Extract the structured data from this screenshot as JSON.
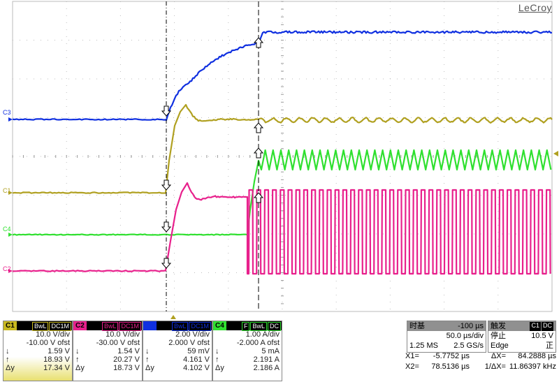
{
  "brand": "LeCroy",
  "colors": {
    "c1": "#b0a020",
    "c2": "#e8208c",
    "c3": "#1030e0",
    "c4": "#30e030",
    "grid": "#bfbfbf"
  },
  "trace_labels": {
    "c3": "C3",
    "c1": "C1",
    "c4": "C4",
    "c2": "C2"
  },
  "channels": [
    {
      "tag": "C1",
      "badges": [
        "BwL",
        "DC1M"
      ],
      "vdiv": "10.0 V/div",
      "ofst": "-10.00 V ofst",
      "down": "1.59 V",
      "up": "18.93 V",
      "dy": "17.34 V"
    },
    {
      "tag": "C2",
      "badges": [
        "BwL",
        "DC1M"
      ],
      "vdiv": "10.0 V/div",
      "ofst": "-30.00 V ofst",
      "down": "1.54 V",
      "up": "20.27 V",
      "dy": "18.73 V"
    },
    {
      "tag": "C3",
      "badges": [
        "BwL",
        "DC1M"
      ],
      "vdiv": "2.00 V/div",
      "ofst": "2.000 V ofst",
      "down": "59 mV",
      "up": "4.161 V",
      "dy": "4.102 V"
    },
    {
      "tag": "C4",
      "badges": [
        "F",
        "BwL",
        "DC"
      ],
      "vdiv": "1.00 A/div",
      "ofst": "-2.000 A ofst",
      "down": "5 mA",
      "up": "2.191 A",
      "dy": "2.186 A"
    }
  ],
  "symbols": {
    "down": "↓",
    "up": "↑",
    "dy": "Δy"
  },
  "timebase": {
    "label": "时基",
    "delay": "-100 µs",
    "tdiv": "50.0 µs/div",
    "samples": "1.25 MS",
    "rate": "2.5 GS/s"
  },
  "trigger": {
    "label": "触发",
    "src": "C1",
    "coupling": "DC",
    "mode": "停止",
    "level": "10.5 V",
    "type": "Edge",
    "slope": "正"
  },
  "cursors": {
    "x1_label": "X1=",
    "x1": "-5.7752 µs",
    "dx_label": "ΔX=",
    "dx": "84.2888 µs",
    "x2_label": "X2=",
    "x2": "78.5136 µs",
    "inv_label": "1/ΔX=",
    "inv": "11.86397 kHz"
  }
}
